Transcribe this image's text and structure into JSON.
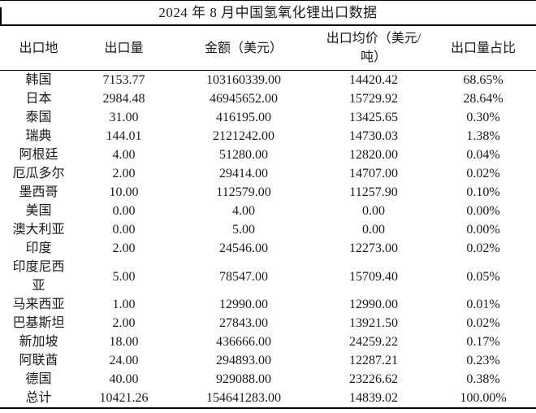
{
  "title": "2024 年 8 月中国氢氧化锂出口数据",
  "table": {
    "headers": [
      "出口地",
      "出口量",
      "金额（美元）",
      "出口均价（美元/\n吨）",
      "出口量占比"
    ],
    "rows": [
      [
        "韩国",
        "7153.77",
        "103160339.00",
        "14420.42",
        "68.65%"
      ],
      [
        "日本",
        "2984.48",
        "46945652.00",
        "15729.92",
        "28.64%"
      ],
      [
        "泰国",
        "31.00",
        "416195.00",
        "13425.65",
        "0.30%"
      ],
      [
        "瑞典",
        "144.01",
        "2121242.00",
        "14730.03",
        "1.38%"
      ],
      [
        "阿根廷",
        "4.00",
        "51280.00",
        "12820.00",
        "0.04%"
      ],
      [
        "厄瓜多尔",
        "2.00",
        "29414.00",
        "14707.00",
        "0.02%"
      ],
      [
        "墨西哥",
        "10.00",
        "112579.00",
        "11257.90",
        "0.10%"
      ],
      [
        "美国",
        "0.00",
        "4.00",
        "0.00",
        "0.00%"
      ],
      [
        "澳大利亚",
        "0.00",
        "5.00",
        "0.00",
        "0.00%"
      ],
      [
        "印度",
        "2.00",
        "24546.00",
        "12273.00",
        "0.02%"
      ],
      [
        "印度尼西\n亚",
        "5.00",
        "78547.00",
        "15709.40",
        "0.05%"
      ],
      [
        "马来西亚",
        "1.00",
        "12990.00",
        "12990.00",
        "0.01%"
      ],
      [
        "巴基斯坦",
        "2.00",
        "27843.00",
        "13921.50",
        "0.02%"
      ],
      [
        "新加坡",
        "18.00",
        "436666.00",
        "24259.22",
        "0.17%"
      ],
      [
        "阿联酋",
        "24.00",
        "294893.00",
        "12287.21",
        "0.23%"
      ],
      [
        "德国",
        "40.00",
        "929088.00",
        "23226.62",
        "0.38%"
      ],
      [
        "总计",
        "10421.26",
        "154641283.00",
        "14839.02",
        "100.00%"
      ]
    ],
    "total_row_label": "总计"
  },
  "colors": {
    "text": "#1a1a1a",
    "rule": "#000000",
    "background": "#ffffff"
  }
}
